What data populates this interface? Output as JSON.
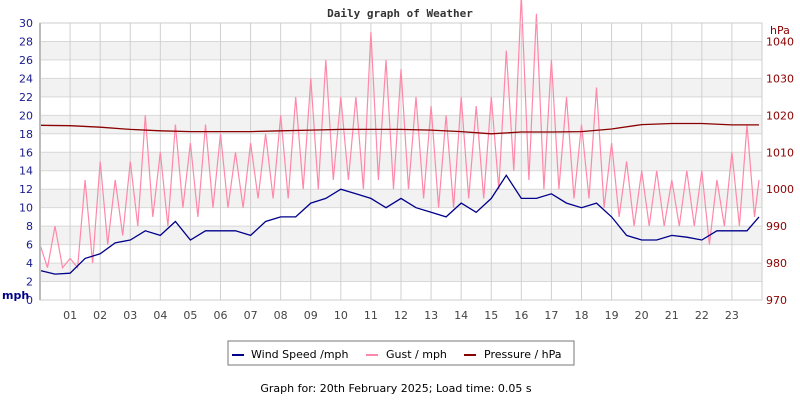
{
  "chart_data": {
    "type": "line",
    "title": "Daily graph of Weather",
    "xlabel": "",
    "ylabel_left": "mph",
    "ylabel_right": "hPa",
    "x_ticks": [
      "01",
      "02",
      "03",
      "04",
      "05",
      "06",
      "07",
      "08",
      "09",
      "10",
      "11",
      "12",
      "13",
      "14",
      "15",
      "16",
      "17",
      "18",
      "19",
      "20",
      "21",
      "22",
      "23"
    ],
    "xlim": [
      0,
      24
    ],
    "ylim_left": [
      0,
      30
    ],
    "y_ticks_left": [
      0,
      2,
      4,
      6,
      8,
      10,
      12,
      14,
      16,
      18,
      20,
      22,
      24,
      26,
      28,
      30
    ],
    "ylim_right": [
      970,
      1045
    ],
    "y_ticks_right": [
      970,
      980,
      990,
      1000,
      1010,
      1020,
      1030,
      1040
    ],
    "grid": true,
    "legend_position": "bottom",
    "series": [
      {
        "name": "Wind Speed /mph",
        "axis": "left",
        "color": "#00008b",
        "x": [
          0,
          0.5,
          1,
          1.5,
          2,
          2.5,
          3,
          3.5,
          4,
          4.5,
          5,
          5.5,
          6,
          6.5,
          7,
          7.5,
          8,
          8.5,
          9,
          9.5,
          10,
          10.5,
          11,
          11.5,
          12,
          12.5,
          13,
          13.5,
          14,
          14.5,
          15,
          15.5,
          16,
          16.5,
          17,
          17.5,
          18,
          18.5,
          19,
          19.5,
          20,
          20.5,
          21,
          21.5,
          22,
          22.5,
          23,
          23.5,
          23.9
        ],
        "values": [
          3.2,
          2.8,
          2.9,
          4.5,
          5,
          6.2,
          6.5,
          7.5,
          7,
          8.5,
          6.5,
          7.5,
          7.5,
          7.5,
          7,
          8.5,
          9,
          9,
          10.5,
          11,
          12,
          11.5,
          11,
          10,
          11,
          10,
          9.5,
          9,
          10.5,
          9.5,
          11,
          13.5,
          11,
          11,
          11.5,
          10.5,
          10,
          10.5,
          9,
          7,
          6.5,
          6.5,
          7,
          6.8,
          6.5,
          7.5,
          7.5,
          7.5,
          9
        ]
      },
      {
        "name": "Gust / mph",
        "axis": "left",
        "color": "#ff88aa",
        "x": [
          0,
          0.25,
          0.5,
          0.75,
          1,
          1.25,
          1.5,
          1.75,
          2,
          2.25,
          2.5,
          2.75,
          3,
          3.25,
          3.5,
          3.75,
          4,
          4.25,
          4.5,
          4.75,
          5,
          5.25,
          5.5,
          5.75,
          6,
          6.25,
          6.5,
          6.75,
          7,
          7.25,
          7.5,
          7.75,
          8,
          8.25,
          8.5,
          8.75,
          9,
          9.25,
          9.5,
          9.75,
          10,
          10.25,
          10.5,
          10.75,
          11,
          11.25,
          11.5,
          11.75,
          12,
          12.25,
          12.5,
          12.75,
          13,
          13.25,
          13.5,
          13.75,
          14,
          14.25,
          14.5,
          14.75,
          15,
          15.25,
          15.5,
          15.75,
          16,
          16.25,
          16.5,
          16.75,
          17,
          17.25,
          17.5,
          17.75,
          18,
          18.25,
          18.5,
          18.75,
          19,
          19.25,
          19.5,
          19.75,
          20,
          20.25,
          20.5,
          20.75,
          21,
          21.25,
          21.5,
          21.75,
          22,
          22.25,
          22.5,
          22.75,
          23,
          23.25,
          23.5,
          23.75,
          23.9
        ],
        "values": [
          6,
          3.5,
          8,
          3.5,
          4.5,
          3.5,
          13,
          4,
          15,
          6,
          13,
          7,
          15,
          8,
          20,
          9,
          16,
          8,
          19,
          10,
          17,
          9,
          19,
          10,
          18,
          10,
          16,
          10,
          17,
          11,
          18,
          11,
          20,
          11,
          22,
          12,
          24,
          12,
          26,
          13,
          22,
          13,
          22,
          12,
          29,
          13,
          26,
          12,
          25,
          12,
          22,
          11,
          21,
          10,
          20,
          10,
          22,
          11,
          21,
          11,
          22,
          12,
          27,
          14,
          33,
          13,
          31,
          12,
          26,
          12,
          22,
          11,
          19,
          11,
          23,
          10,
          17,
          9,
          15,
          8,
          14,
          8,
          14,
          8,
          13,
          8,
          14,
          8,
          14,
          6,
          13,
          8,
          16,
          8,
          19,
          9,
          13
        ]
      },
      {
        "name": "Pressure / hPa",
        "axis": "right",
        "color": "#8b0000",
        "x": [
          0,
          1,
          2,
          3,
          4,
          5,
          6,
          7,
          8,
          9,
          10,
          11,
          12,
          13,
          14,
          15,
          16,
          17,
          18,
          19,
          20,
          21,
          22,
          23,
          23.9
        ],
        "values": [
          1017.3,
          1017.2,
          1016.8,
          1016.2,
          1015.8,
          1015.6,
          1015.6,
          1015.6,
          1015.8,
          1016,
          1016.2,
          1016.2,
          1016.2,
          1016,
          1015.6,
          1015,
          1015.5,
          1015.5,
          1015.6,
          1016.3,
          1017.5,
          1017.8,
          1017.8,
          1017.4,
          1017.4
        ]
      }
    ]
  },
  "legend": {
    "items": [
      {
        "label": "Wind Speed /mph",
        "color": "#00008b"
      },
      {
        "label": "Gust / mph",
        "color": "#ff88aa"
      },
      {
        "label": "Pressure / hPa",
        "color": "#8b0000"
      }
    ]
  },
  "footer": "Graph for: 20th February 2025; Load time: 0.05 s"
}
